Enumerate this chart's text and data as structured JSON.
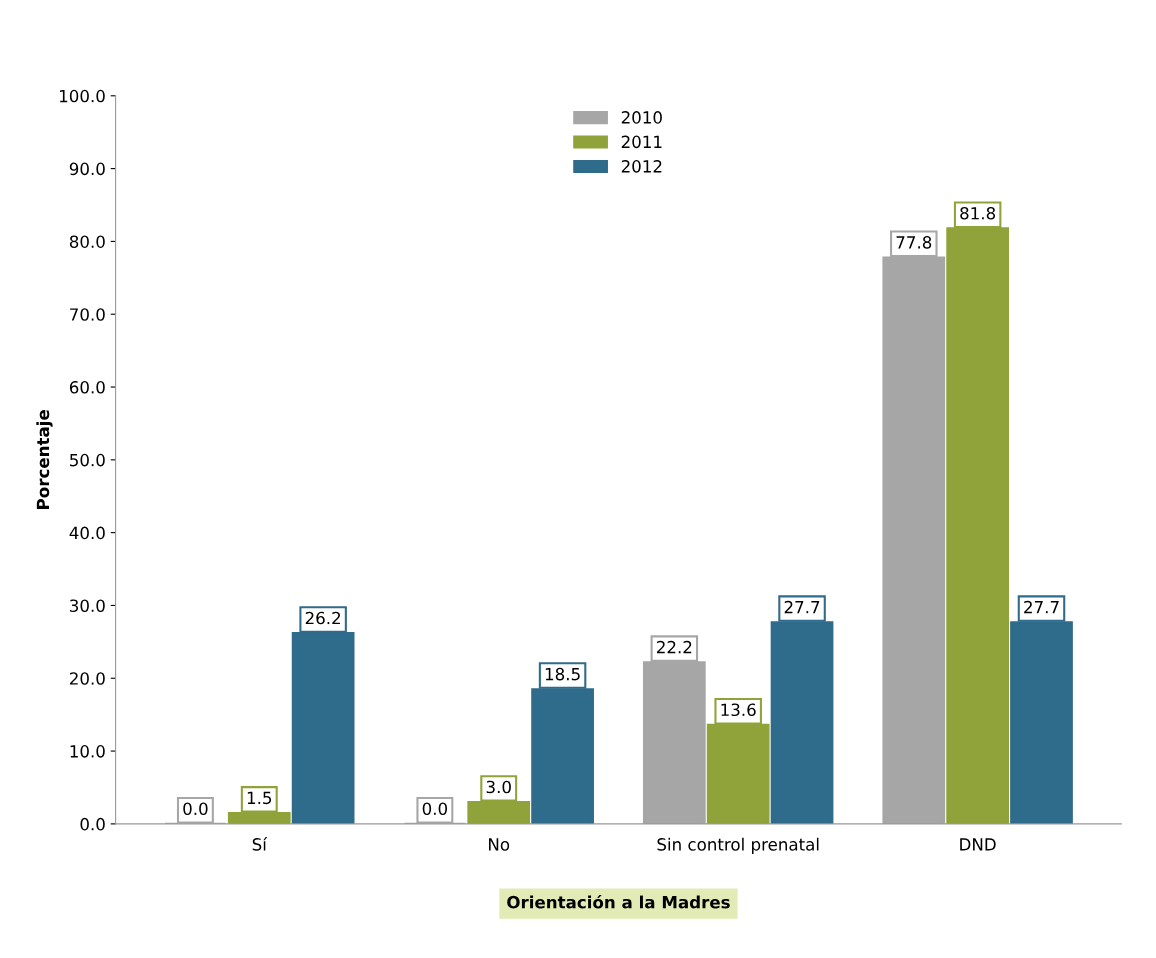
{
  "chart_data": {
    "type": "bar",
    "xlabel": "Orientación a la Madres",
    "ylabel": "Porcentaje",
    "categories": [
      "Sí",
      "No",
      "Sin control prenatal",
      "DND"
    ],
    "series": [
      {
        "name": "2010",
        "color": "#a6a6a6",
        "values": [
          0.0,
          0.0,
          22.2,
          77.8
        ],
        "value_labels": [
          "0.0",
          "0.0",
          "22.2",
          "77.8"
        ]
      },
      {
        "name": "2011",
        "color": "#8fa33a",
        "values": [
          1.5,
          3.0,
          13.6,
          81.8
        ],
        "value_labels": [
          "1.5",
          "3.0",
          "13.6",
          "81.8"
        ]
      },
      {
        "name": "2012",
        "color": "#2f6b8a",
        "values": [
          26.2,
          18.5,
          27.7,
          27.7
        ],
        "value_labels": [
          "26.2",
          "18.5",
          "27.7",
          "27.7"
        ]
      }
    ],
    "ylim": [
      0,
      100
    ],
    "yticks": [
      {
        "value": 0,
        "label": "0.0"
      },
      {
        "value": 10,
        "label": "10.0"
      },
      {
        "value": 20,
        "label": "20.0"
      },
      {
        "value": 30,
        "label": "30.0"
      },
      {
        "value": 40,
        "label": "40.0"
      },
      {
        "value": 50,
        "label": "50.0"
      },
      {
        "value": 60,
        "label": "60.0"
      },
      {
        "value": 70,
        "label": "70.0"
      },
      {
        "value": 80,
        "label": "80.0"
      },
      {
        "value": 90,
        "label": "90.0"
      },
      {
        "value": 100,
        "label": "100.0"
      }
    ],
    "legend": "top",
    "grid": false
  }
}
